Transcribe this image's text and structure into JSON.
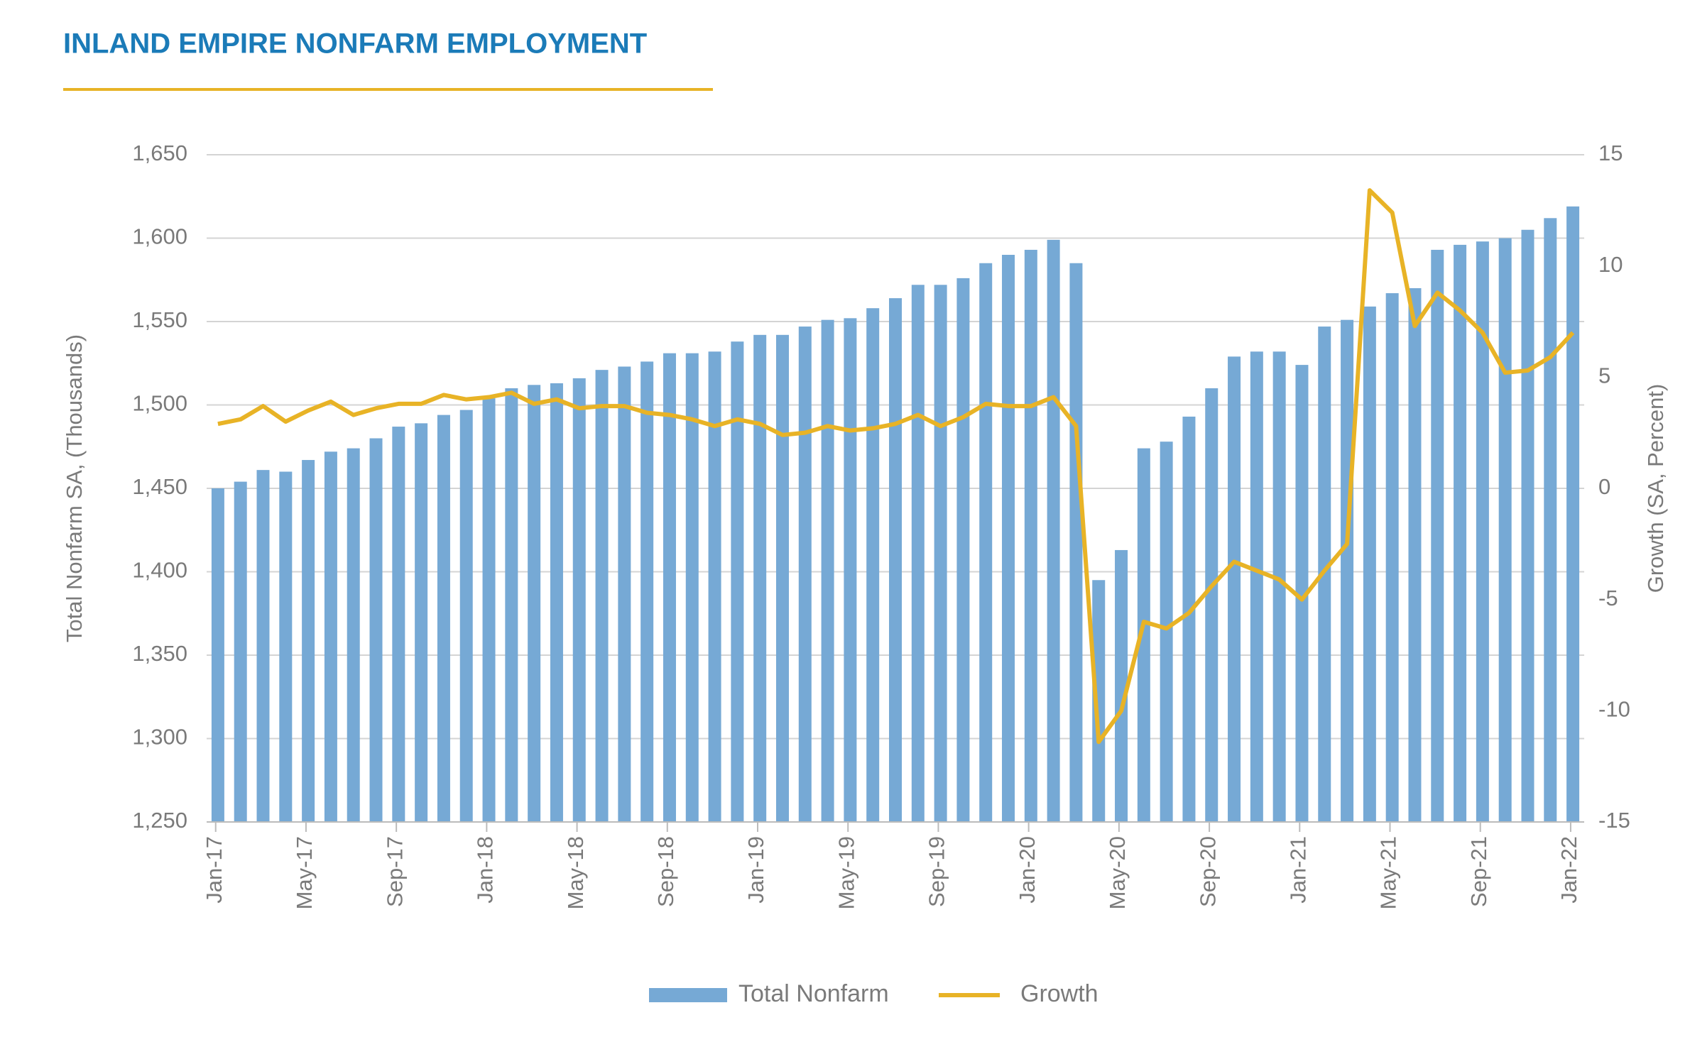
{
  "chart_data": {
    "type": "bar",
    "title": "INLAND EMPIRE NONFARM EMPLOYMENT",
    "y_label": "Total Nonfarm SA, (Thousands)",
    "y2_label": "Growth (SA, Percent)",
    "categories": [
      "Jan-17",
      null,
      null,
      null,
      "May-17",
      null,
      null,
      null,
      "Sep-17",
      null,
      null,
      null,
      "Jan-18",
      null,
      null,
      null,
      "May-18",
      null,
      null,
      null,
      "Sep-18",
      null,
      null,
      null,
      "Jan-19",
      null,
      null,
      null,
      "May-19",
      null,
      null,
      null,
      "Sep-19",
      null,
      null,
      null,
      "Jan-20",
      null,
      null,
      null,
      "May-20",
      null,
      null,
      null,
      "Sep-20",
      null,
      null,
      null,
      "Jan-21",
      null,
      null,
      null,
      "May-21",
      null,
      null,
      null,
      "Sep-21",
      null,
      null,
      null,
      "Jan-22"
    ],
    "series": [
      {
        "name": "Total Nonfarm",
        "type": "bar",
        "color": "#76a9d5",
        "values": [
          1450,
          1454,
          1461,
          1460,
          1467,
          1472,
          1474,
          1480,
          1487,
          1489,
          1494,
          1497,
          1504,
          1510,
          1512,
          1513,
          1516,
          1521,
          1523,
          1526,
          1531,
          1531,
          1532,
          1538,
          1542,
          1542,
          1547,
          1551,
          1552,
          1558,
          1564,
          1572,
          1572,
          1576,
          1585,
          1590,
          1593,
          1599,
          1585,
          1395,
          1413,
          1474,
          1478,
          1493,
          1510,
          1529,
          1532,
          1532,
          1524,
          1547,
          1551,
          1559,
          1567,
          1570,
          1593,
          1596,
          1598,
          1600,
          1605,
          1612,
          1619
        ]
      },
      {
        "name": "Growth",
        "type": "line",
        "axis": "y2",
        "color": "#e8b326",
        "values": [
          2.9,
          3.1,
          3.7,
          3.0,
          3.5,
          3.9,
          3.3,
          3.6,
          3.8,
          3.8,
          4.2,
          4.0,
          4.1,
          4.3,
          3.8,
          4.0,
          3.6,
          3.7,
          3.7,
          3.4,
          3.3,
          3.1,
          2.8,
          3.1,
          2.9,
          2.4,
          2.5,
          2.8,
          2.6,
          2.7,
          2.9,
          3.3,
          2.8,
          3.2,
          3.8,
          3.7,
          3.7,
          4.1,
          2.8,
          -11.4,
          -10.0,
          -6.0,
          -6.3,
          -5.6,
          -4.4,
          -3.3,
          -3.7,
          -4.1,
          -5.0,
          -3.7,
          -2.5,
          13.4,
          12.4,
          7.3,
          8.8,
          8.0,
          7.0,
          5.2,
          5.3,
          5.9,
          7.0
        ]
      }
    ],
    "ylim": [
      1250,
      1650
    ],
    "yticks": [
      {
        "value": 1250,
        "label": "1,250"
      },
      {
        "value": 1300,
        "label": "1,300"
      },
      {
        "value": 1350,
        "label": "1,350"
      },
      {
        "value": 1400,
        "label": "1,400"
      },
      {
        "value": 1450,
        "label": "1,450"
      },
      {
        "value": 1500,
        "label": "1,500"
      },
      {
        "value": 1550,
        "label": "1,550"
      },
      {
        "value": 1600,
        "label": "1,600"
      },
      {
        "value": 1650,
        "label": "1,650"
      }
    ],
    "y2lim": [
      -15,
      15
    ],
    "y2ticks": [
      -15,
      -10,
      -5,
      0,
      5,
      10,
      15
    ],
    "grid": true
  }
}
